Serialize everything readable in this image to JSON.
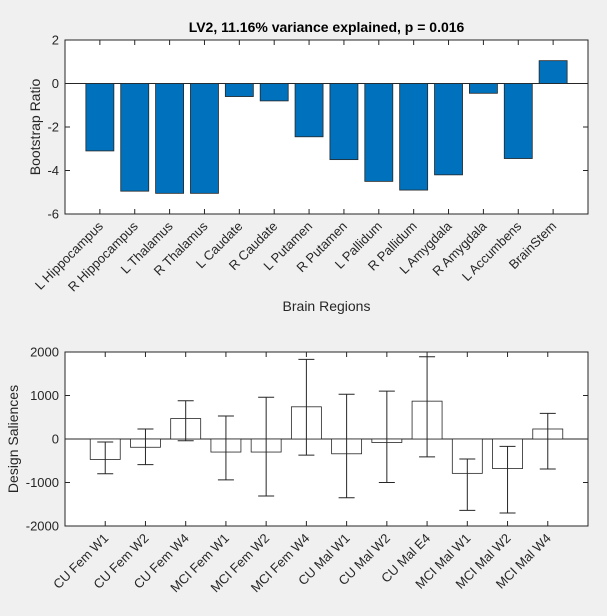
{
  "chart_data": [
    {
      "type": "bar",
      "title": "LV2, 11.16% variance explained, p = 0.016",
      "xlabel": "Brain Regions",
      "ylabel": "Bootstrap Ratio",
      "ylim": [
        -6,
        2
      ],
      "yticks": [
        -6,
        -4,
        -2,
        0,
        2
      ],
      "grid": false,
      "bar_color": "#0072bd",
      "categories": [
        "L Hippocampus",
        "R Hippocampus",
        "L Thalamus",
        "R Thalamus",
        "L Caudate",
        "R Caudate",
        "L Putamen",
        "R Putamen",
        "L Pallidum",
        "R Pallidum",
        "L Amygdala",
        "R Amygdala",
        "L Accumbens",
        "BrainStem"
      ],
      "values": [
        -3.1,
        -4.95,
        -5.05,
        -5.05,
        -0.6,
        -0.8,
        -2.45,
        -3.5,
        -4.5,
        -4.9,
        -4.2,
        -0.45,
        -3.45,
        1.05
      ]
    },
    {
      "type": "bar",
      "title": "",
      "xlabel": "",
      "ylabel": "Design Saliences",
      "ylim": [
        -2000,
        2000
      ],
      "yticks": [
        -2000,
        -1000,
        0,
        1000,
        2000
      ],
      "grid": false,
      "bar_color": "#ffffff",
      "categories": [
        "CU Fem W1",
        "CU Fem W2",
        "CU Fem W4",
        "MCI Fem W1",
        "MCI Fem W2",
        "MCI Fem W4",
        "CU Mal W1",
        "CU Mal W2",
        "CU Mal E4",
        "MCI Mal W1",
        "MCI Mal W2",
        "MCI Mal W4"
      ],
      "values": [
        -470,
        -190,
        470,
        -300,
        -300,
        740,
        -340,
        -80,
        870,
        -790,
        -680,
        230
      ],
      "error_bars": {
        "lower": [
          -800,
          -590,
          -40,
          -940,
          -1310,
          -370,
          -1350,
          -1000,
          -410,
          -1640,
          -1700,
          -690
        ],
        "upper": [
          -70,
          230,
          880,
          530,
          960,
          1830,
          1030,
          1100,
          1890,
          -460,
          -170,
          590
        ]
      }
    }
  ]
}
